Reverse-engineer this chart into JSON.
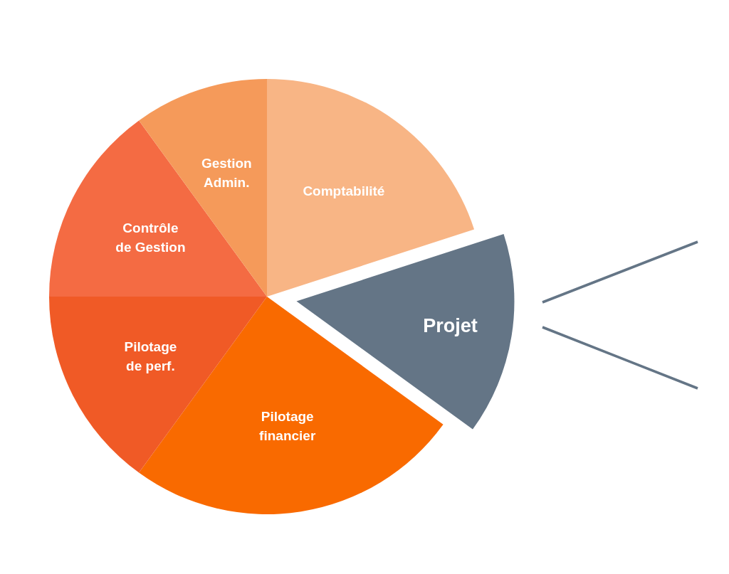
{
  "chart_data": {
    "type": "pie",
    "categories": [
      "Comptabilité",
      "Projet",
      "Pilotage financier",
      "Pilotage de perf.",
      "Contrôle de Gestion",
      "Gestion Admin."
    ],
    "values": [
      20,
      15,
      25,
      15,
      15,
      10
    ],
    "colors": [
      "#f8b585",
      "#647586",
      "#f96a00",
      "#f05a26",
      "#f46b43",
      "#f59a5a"
    ]
  }
}
